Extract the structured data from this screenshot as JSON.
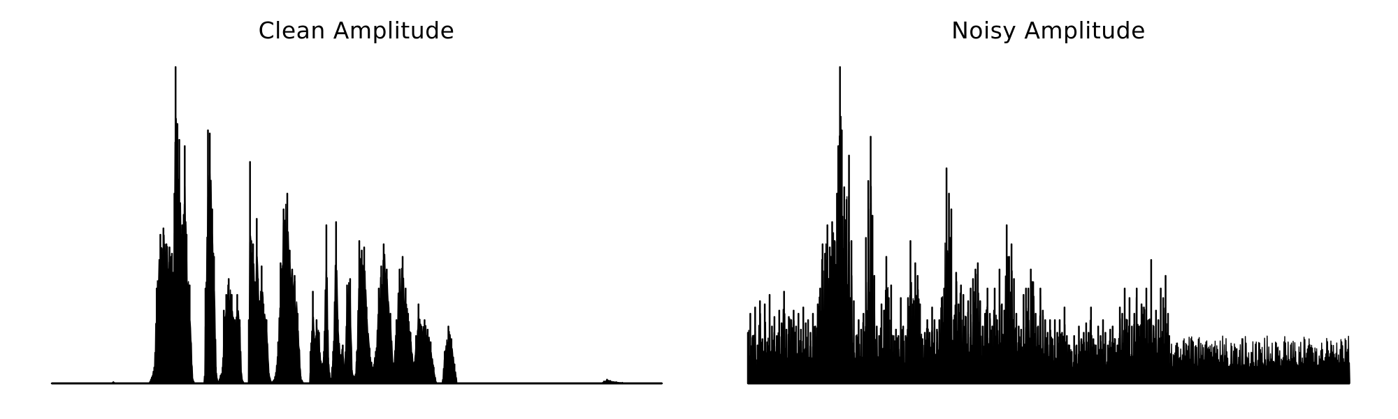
{
  "colors": {
    "signal": "#000000",
    "background": "#ffffff"
  },
  "chart_data": [
    {
      "type": "line",
      "title": "Clean Amplitude",
      "xlabel": "",
      "ylabel": "",
      "axes_visible": false,
      "grid": false,
      "xlim": [
        0,
        1
      ],
      "ylim": [
        0,
        1
      ],
      "envelope": [
        [
          0.0,
          0.0
        ],
        [
          0.1,
          0.002
        ],
        [
          0.101,
          0.004
        ],
        [
          0.103,
          0.001
        ],
        [
          0.16,
          0.001
        ],
        [
          0.168,
          0.05
        ],
        [
          0.172,
          0.3
        ],
        [
          0.178,
          0.47
        ],
        [
          0.183,
          0.49
        ],
        [
          0.188,
          0.44
        ],
        [
          0.193,
          0.43
        ],
        [
          0.197,
          0.41
        ],
        [
          0.199,
          0.35
        ],
        [
          0.201,
          0.6
        ],
        [
          0.203,
          1.0
        ],
        [
          0.206,
          0.82
        ],
        [
          0.209,
          0.77
        ],
        [
          0.212,
          0.47
        ],
        [
          0.214,
          0.5
        ],
        [
          0.218,
          0.75
        ],
        [
          0.221,
          0.47
        ],
        [
          0.226,
          0.31
        ],
        [
          0.23,
          0.03
        ],
        [
          0.233,
          0.0
        ],
        [
          0.25,
          0.0
        ],
        [
          0.252,
          0.3
        ],
        [
          0.256,
          0.8
        ],
        [
          0.259,
          0.79
        ],
        [
          0.263,
          0.55
        ],
        [
          0.266,
          0.4
        ],
        [
          0.269,
          0.05
        ],
        [
          0.272,
          0.0
        ],
        [
          0.28,
          0.05
        ],
        [
          0.282,
          0.23
        ],
        [
          0.286,
          0.28
        ],
        [
          0.29,
          0.33
        ],
        [
          0.295,
          0.28
        ],
        [
          0.3,
          0.2
        ],
        [
          0.304,
          0.28
        ],
        [
          0.308,
          0.2
        ],
        [
          0.311,
          0.02
        ],
        [
          0.315,
          0.0
        ],
        [
          0.322,
          0.0
        ],
        [
          0.323,
          0.2
        ],
        [
          0.325,
          0.7
        ],
        [
          0.327,
          0.45
        ],
        [
          0.33,
          0.44
        ],
        [
          0.333,
          0.32
        ],
        [
          0.336,
          0.52
        ],
        [
          0.338,
          0.33
        ],
        [
          0.341,
          0.26
        ],
        [
          0.344,
          0.37
        ],
        [
          0.347,
          0.25
        ],
        [
          0.352,
          0.2
        ],
        [
          0.356,
          0.03
        ],
        [
          0.36,
          0.0
        ],
        [
          0.366,
          0.02
        ],
        [
          0.371,
          0.13
        ],
        [
          0.375,
          0.38
        ],
        [
          0.38,
          0.55
        ],
        [
          0.386,
          0.6
        ],
        [
          0.39,
          0.42
        ],
        [
          0.394,
          0.36
        ],
        [
          0.398,
          0.34
        ],
        [
          0.403,
          0.22
        ],
        [
          0.408,
          0.02
        ],
        [
          0.412,
          0.0
        ],
        [
          0.423,
          0.0
        ],
        [
          0.424,
          0.1
        ],
        [
          0.428,
          0.29
        ],
        [
          0.431,
          0.14
        ],
        [
          0.434,
          0.2
        ],
        [
          0.438,
          0.16
        ],
        [
          0.442,
          0.06
        ],
        [
          0.446,
          0.1
        ],
        [
          0.45,
          0.5
        ],
        [
          0.453,
          0.08
        ],
        [
          0.457,
          0.0
        ],
        [
          0.461,
          0.1
        ],
        [
          0.466,
          0.51
        ],
        [
          0.469,
          0.2
        ],
        [
          0.473,
          0.09
        ],
        [
          0.477,
          0.12
        ],
        [
          0.48,
          0.04
        ],
        [
          0.484,
          0.31
        ],
        [
          0.489,
          0.33
        ],
        [
          0.492,
          0.04
        ],
        [
          0.497,
          0.02
        ],
        [
          0.5,
          0.1
        ],
        [
          0.504,
          0.45
        ],
        [
          0.508,
          0.42
        ],
        [
          0.512,
          0.43
        ],
        [
          0.516,
          0.24
        ],
        [
          0.521,
          0.11
        ],
        [
          0.526,
          0.05
        ],
        [
          0.531,
          0.1
        ],
        [
          0.536,
          0.3
        ],
        [
          0.54,
          0.37
        ],
        [
          0.544,
          0.44
        ],
        [
          0.549,
          0.36
        ],
        [
          0.555,
          0.22
        ],
        [
          0.56,
          0.05
        ],
        [
          0.565,
          0.2
        ],
        [
          0.57,
          0.36
        ],
        [
          0.575,
          0.4
        ],
        [
          0.58,
          0.3
        ],
        [
          0.584,
          0.22
        ],
        [
          0.588,
          0.16
        ],
        [
          0.593,
          0.05
        ],
        [
          0.597,
          0.15
        ],
        [
          0.601,
          0.25
        ],
        [
          0.606,
          0.18
        ],
        [
          0.611,
          0.2
        ],
        [
          0.616,
          0.17
        ],
        [
          0.621,
          0.13
        ],
        [
          0.626,
          0.05
        ],
        [
          0.63,
          0.0
        ],
        [
          0.64,
          0.0
        ],
        [
          0.644,
          0.1
        ],
        [
          0.65,
          0.18
        ],
        [
          0.655,
          0.14
        ],
        [
          0.66,
          0.06
        ],
        [
          0.664,
          0.0
        ],
        [
          0.9,
          0.0
        ],
        [
          0.905,
          0.006
        ],
        [
          0.91,
          0.012
        ],
        [
          0.915,
          0.008
        ],
        [
          0.925,
          0.004
        ],
        [
          0.935,
          0.002
        ],
        [
          1.0,
          0.0
        ]
      ]
    },
    {
      "type": "line",
      "title": "Noisy Amplitude",
      "xlabel": "",
      "ylabel": "",
      "axes_visible": false,
      "grid": false,
      "xlim": [
        0,
        1
      ],
      "ylim": [
        0,
        1
      ],
      "envelope": [
        [
          0.0,
          0.16
        ],
        [
          0.004,
          0.22
        ],
        [
          0.008,
          0.15
        ],
        [
          0.012,
          0.24
        ],
        [
          0.016,
          0.12
        ],
        [
          0.02,
          0.26
        ],
        [
          0.024,
          0.14
        ],
        [
          0.028,
          0.25
        ],
        [
          0.032,
          0.13
        ],
        [
          0.036,
          0.28
        ],
        [
          0.04,
          0.18
        ],
        [
          0.044,
          0.21
        ],
        [
          0.048,
          0.15
        ],
        [
          0.052,
          0.23
        ],
        [
          0.056,
          0.19
        ],
        [
          0.06,
          0.29
        ],
        [
          0.064,
          0.17
        ],
        [
          0.068,
          0.21
        ],
        [
          0.072,
          0.2
        ],
        [
          0.076,
          0.23
        ],
        [
          0.08,
          0.18
        ],
        [
          0.084,
          0.22
        ],
        [
          0.088,
          0.17
        ],
        [
          0.092,
          0.24
        ],
        [
          0.096,
          0.19
        ],
        [
          0.1,
          0.2
        ],
        [
          0.104,
          0.16
        ],
        [
          0.108,
          0.22
        ],
        [
          0.112,
          0.18
        ],
        [
          0.116,
          0.25
        ],
        [
          0.12,
          0.3
        ],
        [
          0.124,
          0.44
        ],
        [
          0.128,
          0.41
        ],
        [
          0.132,
          0.5
        ],
        [
          0.136,
          0.43
        ],
        [
          0.14,
          0.51
        ],
        [
          0.144,
          0.45
        ],
        [
          0.148,
          0.6
        ],
        [
          0.15,
          0.75
        ],
        [
          0.153,
          1.0
        ],
        [
          0.156,
          0.8
        ],
        [
          0.16,
          0.62
        ],
        [
          0.164,
          0.58
        ],
        [
          0.168,
          0.72
        ],
        [
          0.172,
          0.45
        ],
        [
          0.176,
          0.26
        ],
        [
          0.18,
          0.15
        ],
        [
          0.184,
          0.2
        ],
        [
          0.188,
          0.17
        ],
        [
          0.192,
          0.22
        ],
        [
          0.196,
          0.46
        ],
        [
          0.2,
          0.64
        ],
        [
          0.204,
          0.78
        ],
        [
          0.207,
          0.53
        ],
        [
          0.21,
          0.34
        ],
        [
          0.214,
          0.18
        ],
        [
          0.218,
          0.15
        ],
        [
          0.222,
          0.25
        ],
        [
          0.226,
          0.23
        ],
        [
          0.23,
          0.4
        ],
        [
          0.234,
          0.27
        ],
        [
          0.238,
          0.31
        ],
        [
          0.242,
          0.15
        ],
        [
          0.246,
          0.17
        ],
        [
          0.25,
          0.15
        ],
        [
          0.254,
          0.27
        ],
        [
          0.258,
          0.18
        ],
        [
          0.262,
          0.15
        ],
        [
          0.266,
          0.27
        ],
        [
          0.27,
          0.45
        ],
        [
          0.274,
          0.25
        ],
        [
          0.278,
          0.38
        ],
        [
          0.282,
          0.34
        ],
        [
          0.286,
          0.25
        ],
        [
          0.29,
          0.14
        ],
        [
          0.294,
          0.16
        ],
        [
          0.298,
          0.2
        ],
        [
          0.302,
          0.16
        ],
        [
          0.306,
          0.24
        ],
        [
          0.31,
          0.2
        ],
        [
          0.314,
          0.17
        ],
        [
          0.318,
          0.2
        ],
        [
          0.322,
          0.27
        ],
        [
          0.326,
          0.3
        ],
        [
          0.33,
          0.68
        ],
        [
          0.334,
          0.6
        ],
        [
          0.338,
          0.55
        ],
        [
          0.342,
          0.2
        ],
        [
          0.346,
          0.35
        ],
        [
          0.35,
          0.25
        ],
        [
          0.354,
          0.31
        ],
        [
          0.358,
          0.28
        ],
        [
          0.362,
          0.21
        ],
        [
          0.366,
          0.26
        ],
        [
          0.37,
          0.3
        ],
        [
          0.374,
          0.33
        ],
        [
          0.378,
          0.36
        ],
        [
          0.382,
          0.38
        ],
        [
          0.386,
          0.26
        ],
        [
          0.39,
          0.18
        ],
        [
          0.394,
          0.22
        ],
        [
          0.398,
          0.3
        ],
        [
          0.402,
          0.22
        ],
        [
          0.406,
          0.18
        ],
        [
          0.41,
          0.3
        ],
        [
          0.414,
          0.2
        ],
        [
          0.418,
          0.36
        ],
        [
          0.422,
          0.25
        ],
        [
          0.426,
          0.23
        ],
        [
          0.43,
          0.5
        ],
        [
          0.434,
          0.4
        ],
        [
          0.438,
          0.44
        ],
        [
          0.442,
          0.33
        ],
        [
          0.446,
          0.22
        ],
        [
          0.45,
          0.18
        ],
        [
          0.454,
          0.17
        ],
        [
          0.458,
          0.28
        ],
        [
          0.462,
          0.3
        ],
        [
          0.466,
          0.3
        ],
        [
          0.47,
          0.36
        ],
        [
          0.474,
          0.32
        ],
        [
          0.478,
          0.22
        ],
        [
          0.482,
          0.18
        ],
        [
          0.486,
          0.3
        ],
        [
          0.49,
          0.23
        ],
        [
          0.494,
          0.2
        ],
        [
          0.498,
          0.16
        ],
        [
          0.502,
          0.2
        ],
        [
          0.506,
          0.14
        ],
        [
          0.51,
          0.2
        ],
        [
          0.514,
          0.16
        ],
        [
          0.518,
          0.2
        ],
        [
          0.522,
          0.16
        ],
        [
          0.526,
          0.24
        ],
        [
          0.53,
          0.15
        ],
        [
          0.534,
          0.12
        ],
        [
          0.538,
          0.1
        ],
        [
          0.542,
          0.15
        ],
        [
          0.546,
          0.12
        ],
        [
          0.55,
          0.18
        ],
        [
          0.554,
          0.14
        ],
        [
          0.558,
          0.16
        ],
        [
          0.562,
          0.19
        ],
        [
          0.566,
          0.16
        ],
        [
          0.57,
          0.24
        ],
        [
          0.574,
          0.14
        ],
        [
          0.578,
          0.12
        ],
        [
          0.582,
          0.18
        ],
        [
          0.586,
          0.15
        ],
        [
          0.59,
          0.2
        ],
        [
          0.594,
          0.16
        ],
        [
          0.598,
          0.12
        ],
        [
          0.602,
          0.17
        ],
        [
          0.606,
          0.18
        ],
        [
          0.61,
          0.14
        ],
        [
          0.614,
          0.12
        ],
        [
          0.618,
          0.24
        ],
        [
          0.622,
          0.22
        ],
        [
          0.626,
          0.3
        ],
        [
          0.63,
          0.2
        ],
        [
          0.634,
          0.27
        ],
        [
          0.638,
          0.18
        ],
        [
          0.642,
          0.22
        ],
        [
          0.646,
          0.3
        ],
        [
          0.65,
          0.18
        ],
        [
          0.654,
          0.25
        ],
        [
          0.658,
          0.24
        ],
        [
          0.662,
          0.3
        ],
        [
          0.666,
          0.2
        ],
        [
          0.67,
          0.39
        ],
        [
          0.674,
          0.18
        ],
        [
          0.678,
          0.23
        ],
        [
          0.682,
          0.2
        ],
        [
          0.686,
          0.3
        ],
        [
          0.69,
          0.27
        ],
        [
          0.694,
          0.34
        ],
        [
          0.698,
          0.22
        ],
        [
          0.7,
          0.15
        ]
      ]
    }
  ]
}
